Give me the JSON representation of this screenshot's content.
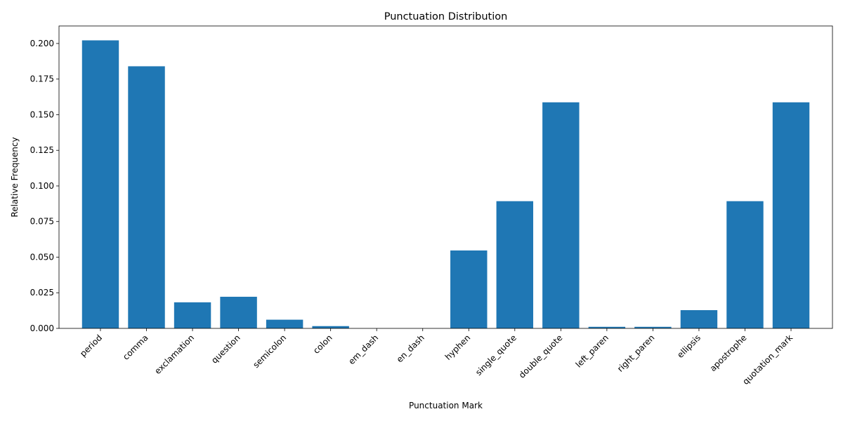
{
  "chart_data": {
    "type": "bar",
    "title": "Punctuation Distribution",
    "xlabel": "Punctuation Mark",
    "ylabel": "Relative Frequency",
    "categories": [
      "period",
      "comma",
      "exclamation",
      "question",
      "semicolon",
      "colon",
      "em_dash",
      "en_dash",
      "hyphen",
      "single_quote",
      "double_quote",
      "left_paren",
      "right_paren",
      "ellipsis",
      "apostrophe",
      "quotation_mark"
    ],
    "values": [
      0.2022,
      0.184,
      0.0183,
      0.0222,
      0.0061,
      0.0016,
      0.0,
      0.0,
      0.0547,
      0.0893,
      0.1587,
      0.0011,
      0.0011,
      0.0128,
      0.0893,
      0.1587
    ],
    "ylim": [
      0,
      0.2123
    ],
    "yticks": [
      "0.000",
      "0.025",
      "0.050",
      "0.075",
      "0.100",
      "0.125",
      "0.150",
      "0.175",
      "0.200"
    ],
    "bar_color": "#1f77b4",
    "grid": false,
    "legend": "none"
  }
}
